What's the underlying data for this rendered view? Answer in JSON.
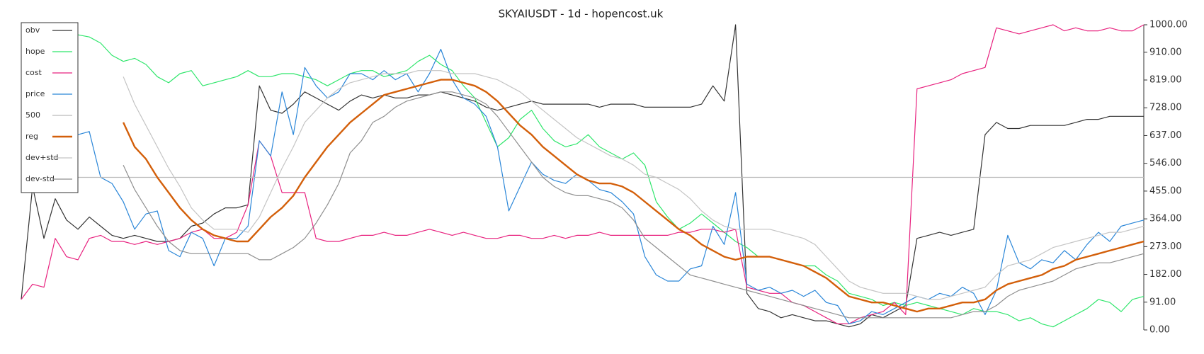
{
  "chart_data": {
    "type": "line",
    "title": "SKYAIUSDT - 1d - hopencost.uk",
    "ylim": [
      0,
      1000
    ],
    "yticks": [
      {
        "value": 0,
        "label": "0.00"
      },
      {
        "value": 91,
        "label": "91.00"
      },
      {
        "value": 182,
        "label": "182.00"
      },
      {
        "value": 273,
        "label": "273.00"
      },
      {
        "value": 364,
        "label": "364.00"
      },
      {
        "value": 455,
        "label": "455.00"
      },
      {
        "value": 546,
        "label": "546.00"
      },
      {
        "value": 637,
        "label": "637.00"
      },
      {
        "value": 728,
        "label": "728.00"
      },
      {
        "value": 819,
        "label": "819.00"
      },
      {
        "value": 910,
        "label": "910.00"
      },
      {
        "value": 1000,
        "label": "1000.00"
      }
    ],
    "legend": "upper-left",
    "series": [
      {
        "name": "obv",
        "color": "#333333",
        "linewidth": 1.2,
        "values": [
          100,
          470,
          300,
          430,
          360,
          330,
          370,
          340,
          310,
          300,
          310,
          300,
          290,
          290,
          300,
          340,
          350,
          380,
          400,
          400,
          410,
          800,
          720,
          710,
          740,
          780,
          760,
          740,
          720,
          750,
          770,
          760,
          770,
          760,
          760,
          770,
          770,
          780,
          770,
          760,
          750,
          730,
          720,
          730,
          740,
          750,
          740,
          740,
          740,
          740,
          740,
          730,
          740,
          740,
          740,
          730,
          730,
          730,
          730,
          730,
          740,
          800,
          750,
          1000,
          120,
          70,
          60,
          40,
          50,
          40,
          30,
          30,
          20,
          10,
          20,
          50,
          40,
          60,
          80,
          300,
          310,
          320,
          310,
          320,
          330,
          640,
          680,
          660,
          660,
          670,
          670,
          670,
          670,
          680,
          690,
          690,
          700,
          700,
          700,
          700
        ]
      },
      {
        "name": "hope",
        "color": "#2ee66b",
        "linewidth": 1.2,
        "values": [
          null,
          null,
          980,
          970,
          970,
          967,
          960,
          940,
          900,
          880,
          890,
          870,
          830,
          810,
          840,
          850,
          800,
          810,
          820,
          830,
          850,
          830,
          830,
          840,
          840,
          830,
          820,
          800,
          820,
          840,
          850,
          850,
          830,
          840,
          850,
          880,
          900,
          870,
          850,
          800,
          760,
          680,
          600,
          630,
          690,
          720,
          660,
          620,
          600,
          610,
          640,
          600,
          580,
          560,
          580,
          540,
          420,
          370,
          330,
          350,
          380,
          350,
          320,
          290,
          270,
          240,
          240,
          230,
          220,
          210,
          210,
          180,
          160,
          120,
          110,
          100,
          80,
          90,
          80,
          90,
          80,
          70,
          60,
          50,
          70,
          60,
          60,
          50,
          30,
          40,
          20,
          10,
          30,
          50,
          70,
          100,
          90,
          60,
          100,
          110
        ]
      },
      {
        "name": "cost",
        "color": "#e8227f",
        "linewidth": 1.2,
        "values": [
          100,
          150,
          140,
          300,
          240,
          230,
          300,
          310,
          290,
          290,
          280,
          290,
          280,
          290,
          300,
          320,
          330,
          300,
          300,
          320,
          410,
          620,
          570,
          450,
          450,
          450,
          300,
          290,
          290,
          300,
          310,
          310,
          320,
          310,
          310,
          320,
          330,
          320,
          310,
          320,
          310,
          300,
          300,
          310,
          310,
          300,
          300,
          310,
          300,
          310,
          310,
          320,
          310,
          310,
          310,
          310,
          310,
          310,
          320,
          320,
          330,
          330,
          320,
          330,
          140,
          130,
          120,
          120,
          90,
          80,
          60,
          40,
          20,
          20,
          40,
          50,
          60,
          90,
          50,
          790,
          800,
          810,
          820,
          840,
          850,
          860,
          990,
          980,
          970,
          980,
          990,
          1000,
          980,
          990,
          980,
          980,
          990,
          980,
          980,
          1000
        ]
      },
      {
        "name": "price",
        "color": "#2a86d8",
        "linewidth": 1.2,
        "values": [
          null,
          null,
          null,
          null,
          null,
          640,
          650,
          500,
          480,
          420,
          330,
          380,
          390,
          260,
          240,
          320,
          300,
          210,
          300,
          300,
          340,
          620,
          570,
          780,
          640,
          860,
          800,
          760,
          780,
          840,
          840,
          820,
          850,
          820,
          840,
          780,
          840,
          920,
          820,
          760,
          740,
          700,
          600,
          390,
          470,
          550,
          510,
          490,
          480,
          510,
          490,
          460,
          450,
          420,
          380,
          240,
          180,
          160,
          160,
          200,
          210,
          340,
          280,
          450,
          150,
          130,
          140,
          120,
          130,
          110,
          130,
          90,
          80,
          20,
          30,
          60,
          50,
          70,
          90,
          110,
          100,
          120,
          110,
          140,
          120,
          50,
          130,
          310,
          220,
          200,
          230,
          220,
          260,
          230,
          280,
          320,
          290,
          340,
          350,
          360
        ]
      },
      {
        "name": "500",
        "color": "#bbbbbb",
        "linewidth": 1.2,
        "values": [
          500,
          500,
          500,
          500,
          500,
          500,
          500,
          500,
          500,
          500,
          500,
          500,
          500,
          500,
          500,
          500,
          500,
          500,
          500,
          500,
          500,
          500,
          500,
          500,
          500,
          500,
          500,
          500,
          500,
          500,
          500,
          500,
          500,
          500,
          500,
          500,
          500,
          500,
          500,
          500,
          500,
          500,
          500,
          500,
          500,
          500,
          500,
          500,
          500,
          500,
          500,
          500,
          500,
          500,
          500,
          500,
          500,
          500,
          500,
          500,
          500,
          500,
          500,
          500,
          500,
          500,
          500,
          500,
          500,
          500,
          500,
          500,
          500,
          500,
          500,
          500,
          500,
          500,
          500,
          500,
          500,
          500,
          500,
          500,
          500,
          500,
          500,
          500,
          500,
          500,
          500,
          500,
          500,
          500,
          500,
          500,
          500,
          500,
          500,
          500
        ]
      },
      {
        "name": "reg",
        "color": "#d35f0a",
        "linewidth": 2.4,
        "values": [
          null,
          null,
          null,
          null,
          null,
          null,
          null,
          null,
          null,
          680,
          600,
          560,
          500,
          450,
          400,
          360,
          330,
          310,
          300,
          290,
          290,
          330,
          370,
          400,
          440,
          500,
          550,
          600,
          640,
          680,
          710,
          740,
          770,
          780,
          790,
          800,
          810,
          820,
          820,
          810,
          800,
          780,
          750,
          710,
          670,
          640,
          600,
          570,
          540,
          510,
          490,
          480,
          480,
          470,
          450,
          420,
          390,
          360,
          330,
          310,
          280,
          260,
          240,
          230,
          240,
          240,
          240,
          230,
          220,
          210,
          190,
          170,
          140,
          110,
          100,
          90,
          90,
          80,
          70,
          60,
          70,
          70,
          80,
          90,
          90,
          100,
          130,
          150,
          160,
          170,
          180,
          200,
          210,
          230,
          240,
          250,
          260,
          270,
          280,
          290
        ]
      },
      {
        "name": "dev+std",
        "color": "#c4c4c4",
        "linewidth": 1.2,
        "values": [
          null,
          null,
          null,
          null,
          null,
          null,
          null,
          null,
          null,
          830,
          740,
          670,
          600,
          530,
          470,
          400,
          360,
          330,
          330,
          330,
          320,
          370,
          450,
          530,
          600,
          680,
          720,
          760,
          790,
          810,
          820,
          830,
          840,
          840,
          840,
          850,
          850,
          850,
          840,
          840,
          840,
          830,
          820,
          800,
          780,
          750,
          720,
          690,
          660,
          630,
          610,
          590,
          570,
          560,
          540,
          510,
          500,
          480,
          460,
          430,
          390,
          360,
          340,
          330,
          330,
          330,
          330,
          320,
          310,
          300,
          280,
          240,
          200,
          160,
          140,
          130,
          120,
          120,
          120,
          110,
          100,
          100,
          110,
          120,
          130,
          140,
          180,
          210,
          220,
          230,
          250,
          270,
          280,
          290,
          300,
          310,
          320,
          320,
          330,
          340
        ]
      },
      {
        "name": "dev-std",
        "color": "#8f8f8f",
        "linewidth": 1.2,
        "values": [
          null,
          null,
          null,
          null,
          null,
          null,
          null,
          null,
          null,
          540,
          460,
          400,
          340,
          290,
          260,
          250,
          250,
          250,
          250,
          250,
          250,
          230,
          230,
          250,
          270,
          300,
          350,
          410,
          480,
          580,
          620,
          680,
          700,
          730,
          750,
          760,
          770,
          780,
          780,
          770,
          760,
          740,
          700,
          650,
          600,
          550,
          500,
          470,
          450,
          440,
          440,
          430,
          420,
          400,
          360,
          300,
          270,
          240,
          210,
          180,
          170,
          160,
          150,
          140,
          130,
          120,
          110,
          100,
          90,
          80,
          70,
          60,
          50,
          40,
          40,
          40,
          40,
          40,
          40,
          40,
          40,
          40,
          40,
          50,
          60,
          60,
          80,
          110,
          130,
          140,
          150,
          160,
          180,
          200,
          210,
          220,
          220,
          230,
          240,
          250
        ]
      }
    ]
  }
}
